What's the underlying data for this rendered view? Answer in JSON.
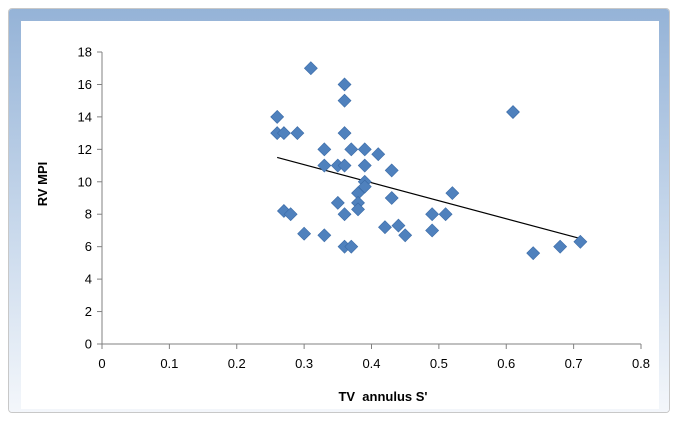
{
  "chart_data": {
    "type": "scatter",
    "title": "",
    "xlabel": "TV  annulus S'",
    "ylabel": "RV MPI",
    "xlim": [
      0,
      0.8
    ],
    "ylim": [
      0,
      18
    ],
    "xticks": [
      "0",
      "0.1",
      "0.2",
      "0.3",
      "0.4",
      "0.5",
      "0.6",
      "0.7",
      "0.8"
    ],
    "yticks": [
      "0",
      "2",
      "4",
      "6",
      "8",
      "10",
      "12",
      "14",
      "16",
      "18"
    ],
    "grid": false,
    "legend": "none",
    "series": [
      {
        "marker": "diamond",
        "color": "#4f81bd",
        "points": [
          [
            0.31,
            17.0
          ],
          [
            0.36,
            16.0
          ],
          [
            0.36,
            15.0
          ],
          [
            0.26,
            14.0
          ],
          [
            0.61,
            14.3
          ],
          [
            0.26,
            13.0
          ],
          [
            0.27,
            13.0
          ],
          [
            0.29,
            13.0
          ],
          [
            0.36,
            13.0
          ],
          [
            0.33,
            12.0
          ],
          [
            0.37,
            12.0
          ],
          [
            0.39,
            12.0
          ],
          [
            0.41,
            11.7
          ],
          [
            0.33,
            11.0
          ],
          [
            0.35,
            11.0
          ],
          [
            0.36,
            11.0
          ],
          [
            0.39,
            11.0
          ],
          [
            0.43,
            10.7
          ],
          [
            0.39,
            10.0
          ],
          [
            0.39,
            9.7
          ],
          [
            0.38,
            9.3
          ],
          [
            0.52,
            9.3
          ],
          [
            0.43,
            9.0
          ],
          [
            0.35,
            8.7
          ],
          [
            0.38,
            8.7
          ],
          [
            0.38,
            8.3
          ],
          [
            0.27,
            8.2
          ],
          [
            0.28,
            8.0
          ],
          [
            0.36,
            8.0
          ],
          [
            0.49,
            8.0
          ],
          [
            0.51,
            8.0
          ],
          [
            0.42,
            7.2
          ],
          [
            0.44,
            7.3
          ],
          [
            0.49,
            7.0
          ],
          [
            0.3,
            6.8
          ],
          [
            0.33,
            6.7
          ],
          [
            0.45,
            6.7
          ],
          [
            0.36,
            6.0
          ],
          [
            0.37,
            6.0
          ],
          [
            0.68,
            6.0
          ],
          [
            0.71,
            6.3
          ],
          [
            0.64,
            5.6
          ]
        ]
      }
    ],
    "trendline": {
      "type": "linear",
      "x": [
        0.26,
        0.71
      ],
      "y": [
        11.5,
        6.5
      ],
      "color": "#000000"
    }
  },
  "colors": {
    "frame_accent": "#95b3d7",
    "marker": "#4f81bd",
    "axis": "#808080"
  }
}
